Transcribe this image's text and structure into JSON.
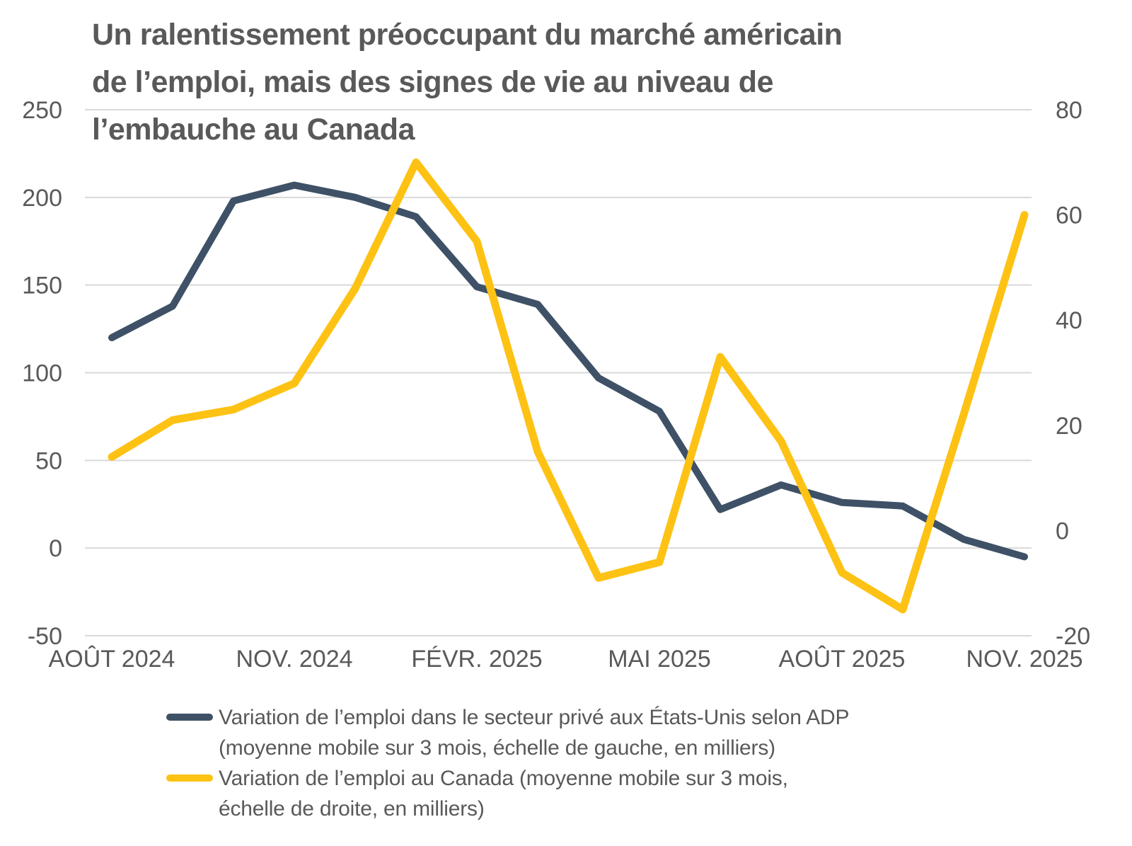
{
  "title": {
    "lines": [
      "Un ralentissement préoccupant du marché américain",
      "de l’emploi, mais des signes de vie au niveau de",
      "l’embauche au Canada"
    ]
  },
  "colors": {
    "us_line": "#3E5166",
    "canada_line": "#FDC214",
    "grid": "#D9D9D9",
    "text": "#595959",
    "background": "#FFFFFF"
  },
  "chart_data": {
    "type": "line",
    "n_points": 16,
    "x_tick_every": 3,
    "x_tick_labels": [
      "AOÛT 2024",
      "NOV. 2024",
      "FÉVR. 2025",
      "MAI 2025",
      "AOÛT 2025",
      "NOV. 2025"
    ],
    "left_axis": {
      "range": [
        -50,
        250
      ],
      "ticks": [
        250,
        200,
        150,
        100,
        50,
        0,
        -50
      ]
    },
    "right_axis": {
      "range": [
        -20,
        80
      ],
      "ticks": [
        80,
        60,
        40,
        20,
        0,
        -20
      ]
    },
    "grid": true,
    "legend_position": "bottom",
    "series": [
      {
        "name": "Variation de l’emploi dans le secteur privé aux États-Unis selon ADP (moyenne mobile sur 3 mois, échelle de gauche, en milliers)",
        "axis": "left",
        "color": "#3E5166",
        "values": [
          120,
          138,
          198,
          207,
          200,
          189,
          149,
          139,
          97,
          78,
          22,
          36,
          26,
          24,
          5,
          -5
        ]
      },
      {
        "name": "Variation de l’emploi au Canada (moyenne mobile sur 3 mois, échelle de droite, en milliers)",
        "axis": "right",
        "color": "#FDC214",
        "values": [
          14,
          21,
          23,
          28,
          46,
          70,
          55,
          15,
          -9,
          -6,
          33,
          17,
          -8,
          -15,
          22,
          60
        ]
      }
    ]
  },
  "legend": {
    "items": [
      {
        "swatch_color": "#3E5166",
        "lines": [
          "Variation de l’emploi dans le secteur privé aux États-Unis selon ADP",
          "(moyenne mobile sur 3 mois, échelle de gauche, en milliers)"
        ]
      },
      {
        "swatch_color": "#FDC214",
        "lines": [
          "Variation de l’emploi au Canada (moyenne mobile sur 3 mois,",
          "échelle de droite, en milliers)"
        ]
      }
    ]
  }
}
